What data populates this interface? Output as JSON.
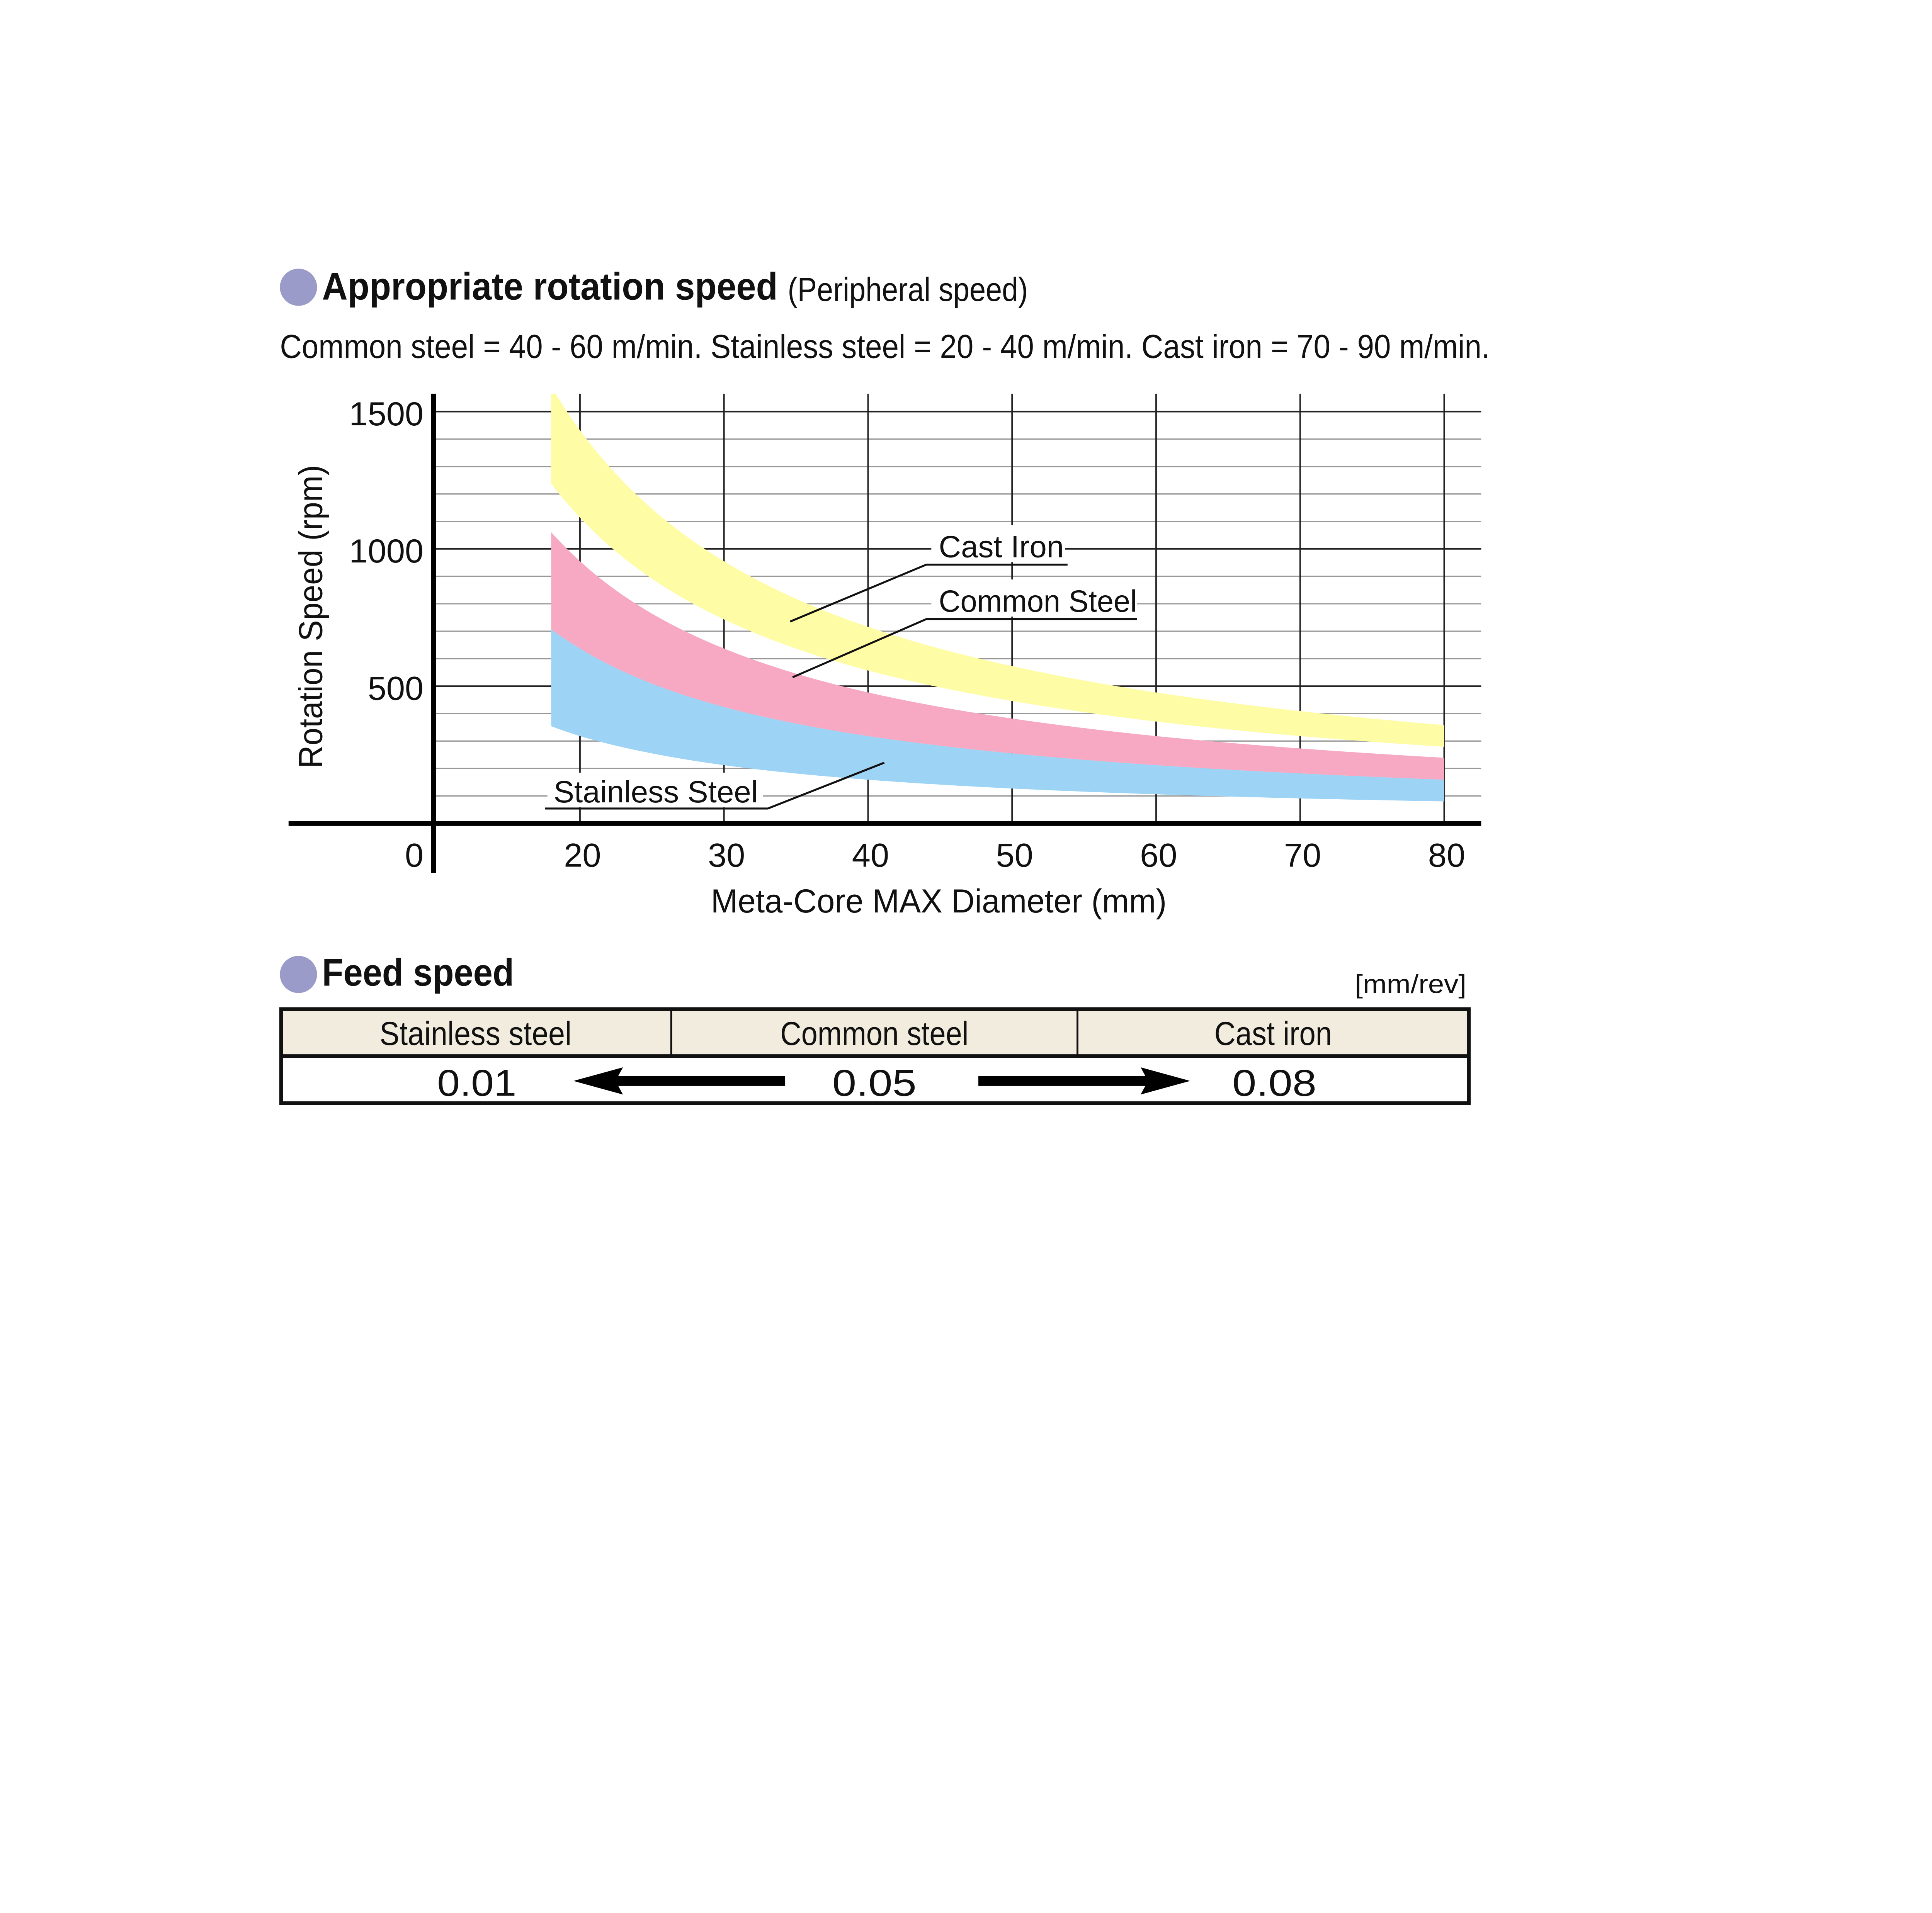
{
  "rotation_section": {
    "title": "Appropriate rotation speed",
    "title_note": "(Peripheral speed)",
    "subtitle": "Common steel = 40 - 60 m/min. Stainless steel = 20 - 40 m/min. Cast iron = 70 - 90 m/min.",
    "bullet_color": "#9b9bc9"
  },
  "chart_data": {
    "type": "area",
    "xlabel": "Meta-Core MAX Diameter (mm)",
    "ylabel": "Rotation Speed (rpm)",
    "xlim": [
      10,
      83
    ],
    "ylim": [
      0,
      1560
    ],
    "x_ticks": [
      "20",
      "30",
      "40",
      "50",
      "60",
      "70",
      "80"
    ],
    "x_tick_values": [
      20,
      30,
      40,
      50,
      60,
      70,
      80
    ],
    "y_ticks": [
      "0",
      "500",
      "1000",
      "1500"
    ],
    "y_tick_values": [
      0,
      500,
      1000,
      1500
    ],
    "y_minor_step": 100,
    "grid": true,
    "x": [
      18,
      20,
      25,
      30,
      40,
      50,
      60,
      70,
      80
    ],
    "series": [
      {
        "name": "Cast Iron",
        "color": "#fffca6",
        "lower": [
          1238,
          1114,
          891,
          743,
          557,
          446,
          371,
          318,
          279
        ],
        "upper": [
          1592,
          1432,
          1146,
          955,
          716,
          573,
          477,
          409,
          358
        ]
      },
      {
        "name": "Common Steel",
        "color": "#f7a8c2",
        "lower": [
          707,
          637,
          509,
          424,
          318,
          255,
          212,
          182,
          159
        ],
        "upper": [
          1061,
          955,
          764,
          637,
          477,
          382,
          318,
          273,
          239
        ]
      },
      {
        "name": "Stainless Steel",
        "color": "#9dd3f4",
        "lower": [
          354,
          318,
          255,
          212,
          159,
          127,
          106,
          91,
          80
        ],
        "upper": [
          707,
          637,
          509,
          424,
          318,
          255,
          212,
          182,
          159
        ]
      }
    ]
  },
  "feed_section": {
    "title": "Feed speed",
    "unit": "[mm/rev]",
    "header_color": "#f2ecdf",
    "columns": [
      "Stainless steel",
      "Common steel",
      "Cast iron"
    ],
    "values": [
      "0.01",
      "0.05",
      "0.08"
    ]
  }
}
